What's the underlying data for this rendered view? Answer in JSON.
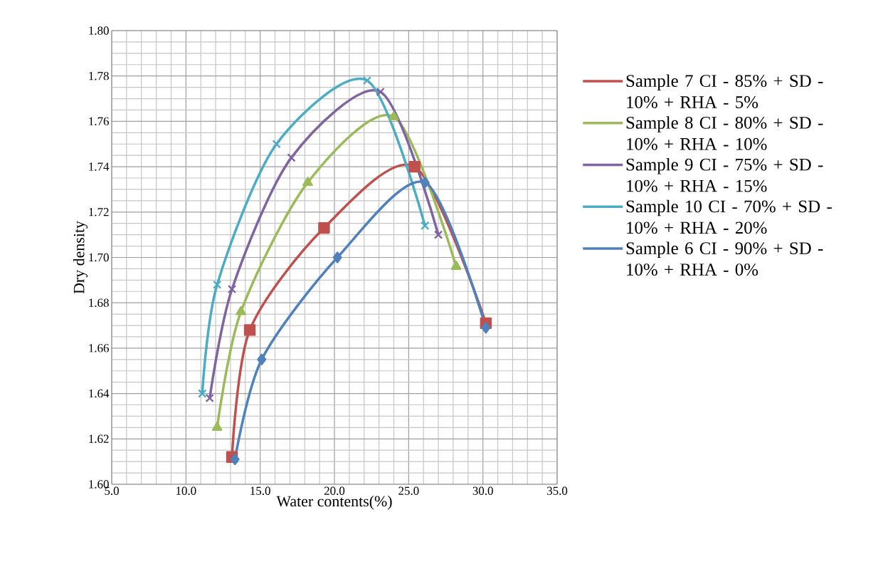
{
  "chart_data": {
    "type": "line",
    "xlabel": "Water contents(%)",
    "ylabel": "Dry density",
    "xlim": [
      5,
      35
    ],
    "ylim": [
      1.6,
      1.8
    ],
    "xticks": [
      {
        "value": 5,
        "label": "5.0"
      },
      {
        "value": 10,
        "label": "10.0"
      },
      {
        "value": 15,
        "label": "15.0"
      },
      {
        "value": 20,
        "label": "20.0"
      },
      {
        "value": 25,
        "label": "25.0"
      },
      {
        "value": 30,
        "label": "30.0"
      },
      {
        "value": 35,
        "label": "35.0"
      }
    ],
    "yticks": [
      {
        "value": 1.6,
        "label": "1.60"
      },
      {
        "value": 1.62,
        "label": "1.62"
      },
      {
        "value": 1.64,
        "label": "1.64"
      },
      {
        "value": 1.66,
        "label": "1.66"
      },
      {
        "value": 1.68,
        "label": "1.68"
      },
      {
        "value": 1.7,
        "label": "1.70"
      },
      {
        "value": 1.72,
        "label": "1.72"
      },
      {
        "value": 1.74,
        "label": "1.74"
      },
      {
        "value": 1.76,
        "label": "1.76"
      },
      {
        "value": 1.78,
        "label": "1.78"
      },
      {
        "value": 1.8,
        "label": "1.80"
      }
    ],
    "grid": true,
    "legend": "right",
    "series": [
      {
        "name": "Sample 7 CI - 85% + SD - 10% + RHA - 5%",
        "color": "#c0504d",
        "marker": "square",
        "x": [
          13.1,
          14.3,
          19.3,
          25.4,
          30.2
        ],
        "values": [
          1.612,
          1.668,
          1.713,
          1.74,
          1.671
        ]
      },
      {
        "name": "Sample 8 CI - 80% + SD - 10% + RHA - 10%",
        "color": "#9bbb59",
        "marker": "triangle",
        "x": [
          12.1,
          13.7,
          18.2,
          24.0,
          28.2
        ],
        "values": [
          1.625,
          1.676,
          1.733,
          1.762,
          1.696
        ]
      },
      {
        "name": "Sample 9 CI - 75% + SD - 10% + RHA - 15%",
        "color": "#8064a2",
        "marker": "cross",
        "x": [
          11.6,
          13.1,
          17.1,
          23.1,
          27.0
        ],
        "values": [
          1.638,
          1.686,
          1.744,
          1.773,
          1.71
        ]
      },
      {
        "name": "Sample 10 CI - 70% + SD - 10% + RHA - 20%",
        "color": "#4bacc6",
        "marker": "cross",
        "x": [
          11.1,
          12.1,
          16.1,
          22.2,
          26.1
        ],
        "values": [
          1.64,
          1.688,
          1.75,
          1.778,
          1.714
        ]
      },
      {
        "name": "Sample 6 CI - 90% + SD - 10% + RHA - 0%",
        "color": "#4f81bd",
        "marker": "diamond",
        "x": [
          13.3,
          15.1,
          20.2,
          26.1,
          30.2
        ],
        "values": [
          1.611,
          1.655,
          1.7,
          1.733,
          1.669
        ]
      }
    ]
  }
}
